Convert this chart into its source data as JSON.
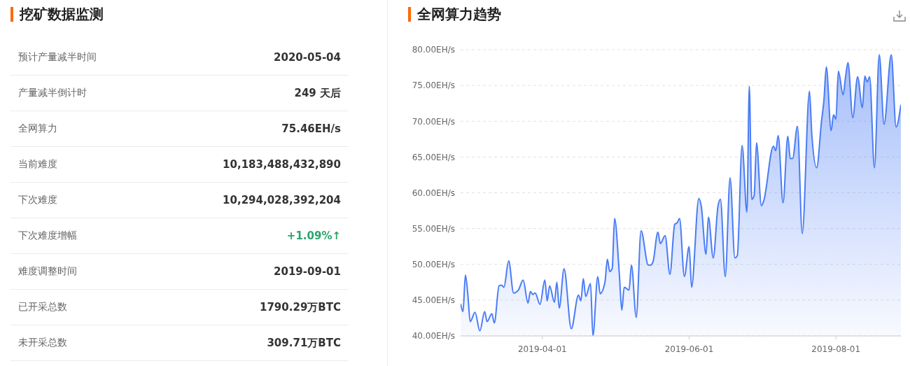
{
  "chart_data": [
    {
      "type": "other",
      "title": "挖矿数据监测",
      "categories": [
        "预计产量减半时间",
        "产量减半倒计时",
        "全网算力",
        "当前难度",
        "下次难度",
        "下次难度增幅",
        "难度调整时间",
        "已开采总数",
        "未开采总数"
      ],
      "value_labels": [
        "2020-05-04",
        "249 天后",
        "75.46EH/s",
        "10,183,488,432,890",
        "10,294,028,392,204",
        "+1.09%↑",
        "2019-09-01",
        "1790.29万BTC",
        "309.71万BTC"
      ],
      "colors": [
        "#333333",
        "#333333",
        "#333333",
        "#333333",
        "#333333",
        "#2ba46a",
        "#333333",
        "#333333",
        "#333333"
      ]
    },
    {
      "type": "area",
      "title": "全网算力趋势",
      "x": [
        "2019-02-26",
        "2019-02-27",
        "2019-02-28",
        "2019-03-01",
        "2019-03-02",
        "2019-03-04",
        "2019-03-06",
        "2019-03-08",
        "2019-03-09",
        "2019-03-11",
        "2019-03-12",
        "2019-03-14",
        "2019-03-15",
        "2019-03-16",
        "2019-03-18",
        "2019-03-20",
        "2019-03-22",
        "2019-03-24",
        "2019-03-26",
        "2019-03-27",
        "2019-03-28",
        "2019-03-29",
        "2019-03-31",
        "2019-04-02",
        "2019-04-03",
        "2019-04-04",
        "2019-04-06",
        "2019-04-07",
        "2019-04-08",
        "2019-04-10",
        "2019-04-13",
        "2019-04-16",
        "2019-04-17",
        "2019-04-18",
        "2019-04-19",
        "2019-04-21",
        "2019-04-22",
        "2019-04-24",
        "2019-04-25",
        "2019-04-27",
        "2019-04-28",
        "2019-04-29",
        "2019-04-30",
        "2019-05-01",
        "2019-05-03",
        "2019-05-04",
        "2019-05-05",
        "2019-05-07",
        "2019-05-08",
        "2019-05-10",
        "2019-05-12",
        "2019-05-15",
        "2019-05-16",
        "2019-05-17",
        "2019-05-19",
        "2019-05-20",
        "2019-05-22",
        "2019-05-24",
        "2019-05-26",
        "2019-05-27",
        "2019-05-28",
        "2019-05-30",
        "2019-06-01",
        "2019-06-02",
        "2019-06-05",
        "2019-06-06",
        "2019-06-08",
        "2019-06-09",
        "2019-06-11",
        "2019-06-13",
        "2019-06-14",
        "2019-06-16",
        "2019-06-18",
        "2019-06-20",
        "2019-06-21",
        "2019-06-23",
        "2019-06-25",
        "2019-06-26",
        "2019-06-27",
        "2019-06-28",
        "2019-06-29",
        "2019-07-01",
        "2019-07-02",
        "2019-07-06",
        "2019-07-07",
        "2019-07-08",
        "2019-07-10",
        "2019-07-12",
        "2019-07-13",
        "2019-07-14",
        "2019-07-16",
        "2019-07-18",
        "2019-07-21",
        "2019-07-22",
        "2019-07-24",
        "2019-07-26",
        "2019-07-27",
        "2019-07-28",
        "2019-07-30",
        "2019-07-31",
        "2019-08-01",
        "2019-08-02",
        "2019-08-04",
        "2019-08-05",
        "2019-08-06",
        "2019-08-08",
        "2019-08-10",
        "2019-08-12",
        "2019-08-13",
        "2019-08-14",
        "2019-08-15",
        "2019-08-17",
        "2019-08-19",
        "2019-08-21",
        "2019-08-24",
        "2019-08-26",
        "2019-08-28"
      ],
      "values": [
        44.5,
        43.4,
        48.5,
        45.8,
        42.0,
        43.3,
        40.7,
        43.4,
        42.0,
        43.1,
        41.8,
        47.0,
        47.1,
        46.8,
        50.5,
        46.0,
        46.4,
        47.8,
        44.6,
        46.2,
        45.8,
        46.0,
        44.4,
        47.8,
        44.9,
        47.0,
        44.7,
        47.5,
        43.9,
        49.4,
        41.0,
        45.7,
        44.9,
        48.0,
        45.5,
        47.3,
        40.0,
        48.3,
        45.9,
        47.5,
        50.7,
        49.0,
        49.4,
        56.4,
        48.5,
        43.6,
        46.8,
        46.4,
        49.9,
        42.6,
        54.7,
        49.9,
        49.9,
        50.4,
        54.5,
        52.9,
        54.0,
        48.6,
        55.6,
        55.8,
        56.4,
        48.3,
        52.5,
        46.8,
        59.2,
        58.2,
        51.4,
        56.6,
        50.9,
        58.2,
        59.1,
        48.3,
        62.1,
        50.9,
        51.2,
        66.6,
        57.3,
        74.9,
        59.1,
        59.6,
        67.0,
        58.2,
        58.9,
        66.5,
        65.9,
        68.0,
        58.6,
        67.9,
        64.8,
        64.8,
        69.3,
        54.3,
        74.2,
        68.0,
        63.5,
        70.0,
        72.9,
        77.6,
        68.7,
        70.9,
        70.3,
        77.0,
        73.7,
        76.2,
        78.2,
        70.5,
        76.2,
        71.9,
        76.3,
        75.5,
        76.2,
        63.5,
        79.3,
        69.6,
        79.3,
        69.2,
        72.3
      ],
      "color": "#4a7cf5",
      "line_style": "solid",
      "grid": "y",
      "xlim": [
        "2019-02-26",
        "2019-08-28"
      ],
      "xticks": [
        "2019-04-01",
        "2019-06-01",
        "2019-08-01"
      ],
      "ylim": [
        40,
        80
      ],
      "yticks": [
        {
          "value": 40,
          "label": "40.00EH/s"
        },
        {
          "value": 45,
          "label": "45.00EH/s"
        },
        {
          "value": 50,
          "label": "50.00EH/s"
        },
        {
          "value": 55,
          "label": "55.00EH/s"
        },
        {
          "value": 60,
          "label": "60.00EH/s"
        },
        {
          "value": 65,
          "label": "65.00EH/s"
        },
        {
          "value": 70,
          "label": "70.00EH/s"
        },
        {
          "value": 75,
          "label": "75.00EH/s"
        },
        {
          "value": 80,
          "label": "80.00EH/s"
        }
      ]
    }
  ]
}
